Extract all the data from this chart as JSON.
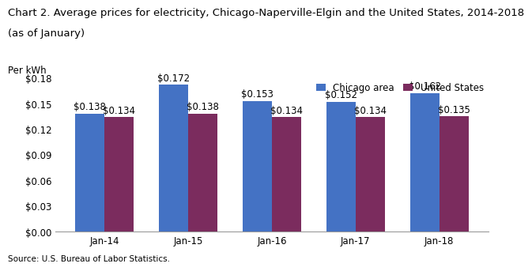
{
  "title_line1": "Chart 2. Average prices for electricity, Chicago-Naperville-Elgin and the United States, 2014-2018",
  "title_line2": "(as of January)",
  "ylabel": "Per kWh",
  "source": "Source: U.S. Bureau of Labor Statistics.",
  "categories": [
    "Jan-14",
    "Jan-15",
    "Jan-16",
    "Jan-17",
    "Jan-18"
  ],
  "chicago_values": [
    0.138,
    0.172,
    0.153,
    0.152,
    0.162
  ],
  "us_values": [
    0.134,
    0.138,
    0.134,
    0.134,
    0.135
  ],
  "chicago_color": "#4472C4",
  "us_color": "#7B2C5E",
  "ylim": [
    0,
    0.18
  ],
  "yticks": [
    0.0,
    0.03,
    0.06,
    0.09,
    0.12,
    0.15,
    0.18
  ],
  "legend_labels": [
    "Chicago area",
    "United States"
  ],
  "title_fontsize": 9.5,
  "axis_fontsize": 8.5,
  "label_fontsize": 8.5,
  "bar_width": 0.35,
  "background_color": "#ffffff"
}
